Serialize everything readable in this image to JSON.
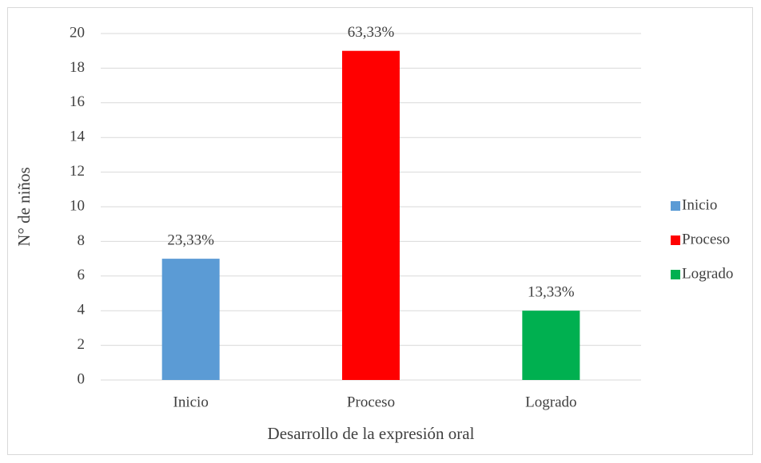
{
  "chart_data": {
    "type": "bar",
    "x_label": "Desarrollo de la expresión oral",
    "y_label": "N° de niños",
    "categories": [
      "Inicio",
      "Proceso",
      "Logrado"
    ],
    "values": [
      7,
      19,
      4
    ],
    "value_labels": [
      "23,33%",
      "63,33%",
      "13,33%"
    ],
    "colors": [
      "#5b9bd5",
      "#ff0000",
      "#00b050"
    ],
    "ylim": [
      0,
      20
    ],
    "yticks": [
      0,
      2,
      4,
      6,
      8,
      10,
      12,
      14,
      16,
      18,
      20
    ],
    "grid": true,
    "legend": "right"
  }
}
